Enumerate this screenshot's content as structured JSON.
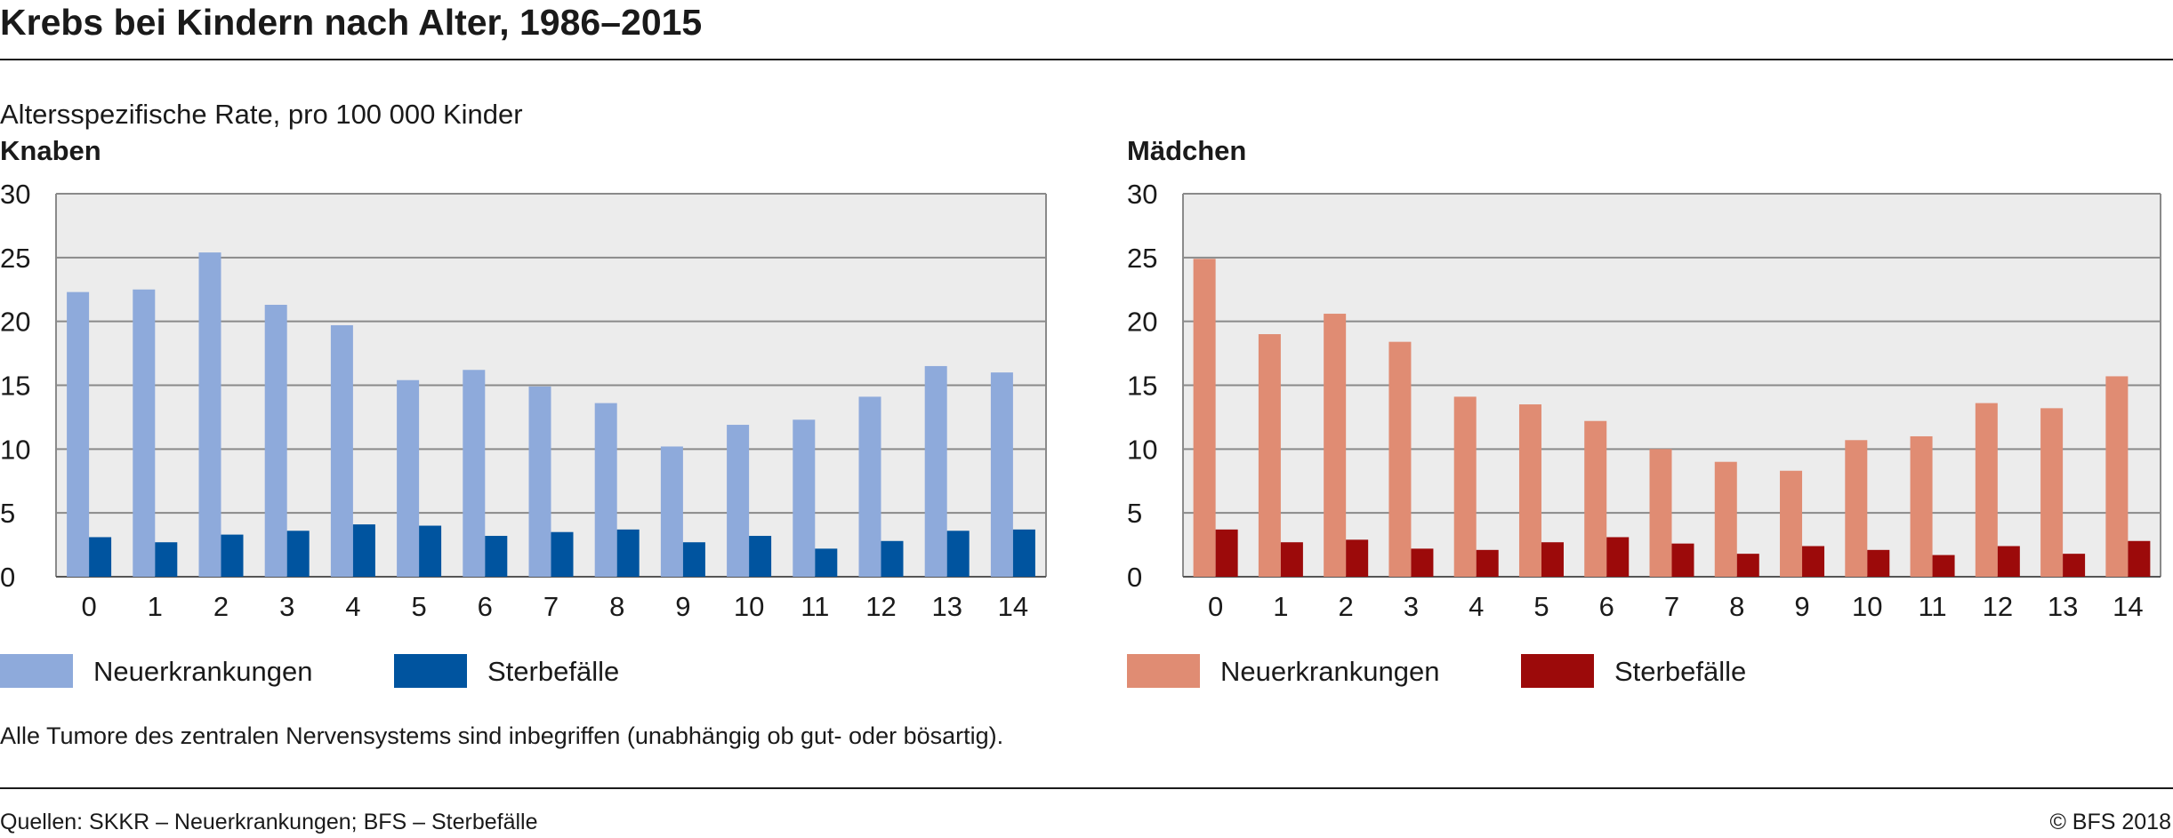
{
  "title": "Krebs bei Kindern nach Alter, 1986–2015",
  "subtitle": "Altersspezifische Rate, pro 100 000 Kinder",
  "footnote": "Alle Tumore des zentralen Nervensystems sind inbegriffen (unabhängig ob gut- oder bösartig).",
  "source": "Quellen: SKKR – Neuerkrankungen; BFS – Sterbefälle",
  "copyright": "© BFS 2018",
  "colors": {
    "knaben_neu": "#8eaadb",
    "knaben_sterbe": "#00549f",
    "maedchen_neu": "#e08c73",
    "maedchen_sterbe": "#9c0a0a",
    "plot_bg": "#ececec",
    "grid": "#8a8a8a"
  },
  "chart_data": [
    {
      "type": "bar",
      "title": "Knaben",
      "xlabel": "",
      "ylabel": "",
      "ylim": [
        0,
        30
      ],
      "yticks": [
        "0",
        "5",
        "10",
        "15",
        "20",
        "25",
        "30"
      ],
      "grid": true,
      "legend_position": "bottom-left",
      "categories": [
        "0",
        "1",
        "2",
        "3",
        "4",
        "5",
        "6",
        "7",
        "8",
        "9",
        "10",
        "11",
        "12",
        "13",
        "14"
      ],
      "series": [
        {
          "name": "Neuerkrankungen",
          "color": "#8eaadb",
          "values": [
            22.3,
            22.5,
            25.4,
            21.3,
            19.7,
            15.4,
            16.2,
            14.9,
            13.6,
            10.2,
            11.9,
            12.3,
            14.1,
            16.5,
            16.0
          ]
        },
        {
          "name": "Sterbefälle",
          "color": "#00549f",
          "values": [
            3.1,
            2.7,
            3.3,
            3.6,
            4.1,
            4.0,
            3.2,
            3.5,
            3.7,
            2.7,
            3.2,
            2.2,
            2.8,
            3.6,
            3.7
          ]
        }
      ]
    },
    {
      "type": "bar",
      "title": "Mädchen",
      "xlabel": "",
      "ylabel": "",
      "ylim": [
        0,
        30
      ],
      "yticks": [
        "0",
        "5",
        "10",
        "15",
        "20",
        "25",
        "30"
      ],
      "grid": true,
      "legend_position": "bottom-left",
      "categories": [
        "0",
        "1",
        "2",
        "3",
        "4",
        "5",
        "6",
        "7",
        "8",
        "9",
        "10",
        "11",
        "12",
        "13",
        "14"
      ],
      "series": [
        {
          "name": "Neuerkrankungen",
          "color": "#e08c73",
          "values": [
            24.9,
            19.0,
            20.6,
            18.4,
            14.1,
            13.5,
            12.2,
            10.0,
            9.0,
            8.3,
            10.7,
            11.0,
            13.6,
            13.2,
            15.7
          ]
        },
        {
          "name": "Sterbefälle",
          "color": "#9c0a0a",
          "values": [
            3.7,
            2.7,
            2.9,
            2.2,
            2.1,
            2.7,
            3.1,
            2.6,
            1.8,
            2.4,
            2.1,
            1.7,
            2.4,
            1.8,
            2.8
          ]
        }
      ]
    }
  ]
}
